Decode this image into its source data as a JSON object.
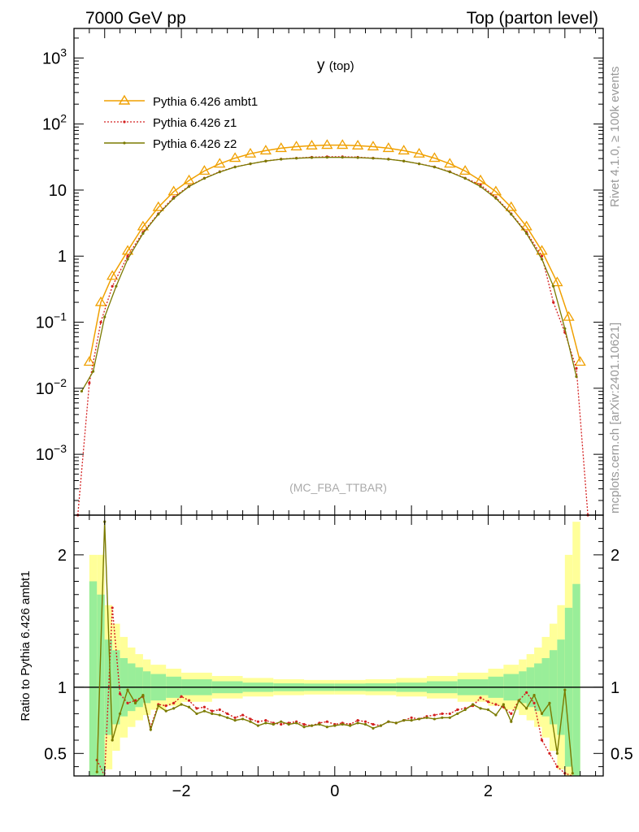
{
  "header": {
    "left": "7000 GeV pp",
    "right": "Top (parton level)"
  },
  "side_labels": {
    "rivet": "Rivet 4.1.0, ≥ 100k events",
    "mcplots": "mcplots.cern.ch [arXiv:2401.10621]"
  },
  "chart_data": [
    {
      "type": "line",
      "title": "y",
      "title_sub": "(top)",
      "watermark": "(MC_FBA_TTBAR)",
      "xlabel": "",
      "ylabel": "",
      "yscale": "log",
      "xlim": [
        -3.4,
        3.5
      ],
      "ylim": [
        0.00012,
        2800
      ],
      "y_ticks": [
        {
          "value": 0.001,
          "base": "10",
          "exp": "−3"
        },
        {
          "value": 0.01,
          "base": "10",
          "exp": "−2"
        },
        {
          "value": 0.1,
          "base": "10",
          "exp": "−1"
        },
        {
          "value": 1,
          "base": "1",
          "exp": ""
        },
        {
          "value": 10,
          "base": "10",
          "exp": ""
        },
        {
          "value": 100,
          "base": "10",
          "exp": "2"
        },
        {
          "value": 1000,
          "base": "10",
          "exp": "3"
        }
      ],
      "legend_position": "top-left",
      "series": [
        {
          "name": "Pythia 6.426 ambt1",
          "color": "#f0a000",
          "style": "solid",
          "marker": "triangle",
          "x": [
            -3.2,
            -3.05,
            -2.9,
            -2.7,
            -2.5,
            -2.3,
            -2.1,
            -1.9,
            -1.7,
            -1.5,
            -1.3,
            -1.1,
            -0.9,
            -0.7,
            -0.5,
            -0.3,
            -0.1,
            0.1,
            0.3,
            0.5,
            0.7,
            0.9,
            1.1,
            1.3,
            1.5,
            1.7,
            1.9,
            2.1,
            2.3,
            2.5,
            2.7,
            2.9,
            3.05,
            3.2
          ],
          "y": [
            0.025,
            0.2,
            0.5,
            1.2,
            2.8,
            5.5,
            9.5,
            14,
            19.5,
            25,
            30.5,
            35.5,
            39.5,
            43,
            45.5,
            47,
            48,
            48,
            47,
            45.5,
            43,
            39.5,
            35.5,
            30.5,
            25,
            19.5,
            14,
            9.5,
            5.5,
            2.8,
            1.2,
            0.4,
            0.12,
            0.025
          ]
        },
        {
          "name": "Pythia 6.426 z1",
          "color": "#d42020",
          "style": "dotted",
          "marker": "dot",
          "x": [
            -3.35,
            -3.2,
            -3.05,
            -2.9,
            -2.7,
            -2.5,
            -2.3,
            -2.1,
            -1.9,
            -1.7,
            -1.5,
            -1.3,
            -1.1,
            -0.9,
            -0.7,
            -0.5,
            -0.3,
            -0.1,
            0.1,
            0.3,
            0.5,
            0.7,
            0.9,
            1.1,
            1.3,
            1.5,
            1.7,
            1.9,
            2.1,
            2.3,
            2.5,
            2.7,
            2.85,
            3.0,
            3.15,
            3.3
          ],
          "y": [
            0.00012,
            0.012,
            0.1,
            0.35,
            1.0,
            2.3,
            4.4,
            7.8,
            11.5,
            15.2,
            19,
            22.5,
            25,
            27.5,
            29.5,
            30.5,
            31.5,
            32,
            32,
            31.5,
            30.5,
            29.5,
            27.5,
            25,
            22.5,
            19,
            15.2,
            12,
            7.8,
            4.4,
            2.3,
            1.0,
            0.2,
            0.07,
            0.02,
            0.00012
          ]
        },
        {
          "name": "Pythia 6.426 z2",
          "color": "#7a7a00",
          "style": "solid",
          "marker": "dot",
          "x": [
            -3.3,
            -3.15,
            -3.0,
            -2.85,
            -2.7,
            -2.5,
            -2.3,
            -2.1,
            -1.9,
            -1.7,
            -1.5,
            -1.3,
            -1.1,
            -0.9,
            -0.7,
            -0.5,
            -0.3,
            -0.1,
            0.1,
            0.3,
            0.5,
            0.7,
            0.9,
            1.1,
            1.3,
            1.5,
            1.7,
            1.9,
            2.1,
            2.3,
            2.5,
            2.7,
            2.85,
            3.0,
            3.15
          ],
          "y": [
            0.009,
            0.018,
            0.12,
            0.35,
            0.9,
            2.2,
            4.3,
            7.5,
            11.3,
            15,
            18.8,
            22.3,
            25,
            27.5,
            29.3,
            30.3,
            31,
            31.3,
            31.3,
            31,
            30.3,
            29.3,
            27.5,
            25,
            22.3,
            18.8,
            15,
            11.3,
            7.5,
            4.3,
            2.2,
            0.9,
            0.35,
            0.08,
            0.015
          ]
        }
      ]
    },
    {
      "type": "line",
      "ylabel": "Ratio to Pythia 6.426 ambt1",
      "xlim": [
        -3.4,
        3.5
      ],
      "ylim": [
        0.33,
        2.3
      ],
      "x_ticks": [
        -2,
        0,
        2
      ],
      "x_tick_labels": [
        "−2",
        "0",
        "2"
      ],
      "y_ticks": [
        0.5,
        1,
        2
      ],
      "y_tick_labels": [
        "0.5",
        "1",
        "2"
      ],
      "reference": 1,
      "bands": {
        "x_edges": [
          -3.2,
          -3.1,
          -3.0,
          -2.9,
          -2.8,
          -2.7,
          -2.6,
          -2.5,
          -2.4,
          -2.2,
          -2.0,
          -1.6,
          -1.2,
          -0.8,
          -0.4,
          0.0,
          0.4,
          0.8,
          1.2,
          1.6,
          2.0,
          2.2,
          2.4,
          2.5,
          2.6,
          2.7,
          2.8,
          2.9,
          3.0,
          3.1,
          3.2
        ],
        "yellow_halfwidth": [
          1.0,
          1.0,
          0.62,
          0.48,
          0.38,
          0.3,
          0.25,
          0.21,
          0.17,
          0.14,
          0.11,
          0.085,
          0.07,
          0.06,
          0.055,
          0.055,
          0.06,
          0.07,
          0.085,
          0.11,
          0.14,
          0.17,
          0.21,
          0.25,
          0.3,
          0.38,
          0.48,
          0.62,
          1.0,
          1.25
        ],
        "green_halfwidth": [
          0.8,
          0.7,
          0.36,
          0.28,
          0.22,
          0.18,
          0.15,
          0.12,
          0.1,
          0.08,
          0.06,
          0.045,
          0.035,
          0.03,
          0.028,
          0.028,
          0.03,
          0.035,
          0.045,
          0.06,
          0.08,
          0.1,
          0.12,
          0.15,
          0.18,
          0.22,
          0.28,
          0.36,
          0.6,
          0.78
        ],
        "yellow_color": "#ffff99",
        "green_color": "#99ee99"
      },
      "series": [
        {
          "name": "Pythia 6.426 z1",
          "color": "#d42020",
          "style": "dotted",
          "x": [
            -3.1,
            -3.0,
            -2.9,
            -2.8,
            -2.7,
            -2.6,
            -2.5,
            -2.4,
            -2.3,
            -2.2,
            -2.1,
            -2.0,
            -1.9,
            -1.8,
            -1.7,
            -1.6,
            -1.5,
            -1.4,
            -1.3,
            -1.2,
            -1.1,
            -1.0,
            -0.9,
            -0.8,
            -0.7,
            -0.6,
            -0.5,
            -0.4,
            -0.3,
            -0.2,
            -0.1,
            0.0,
            0.1,
            0.2,
            0.3,
            0.4,
            0.5,
            0.6,
            0.7,
            0.8,
            0.9,
            1.0,
            1.1,
            1.2,
            1.3,
            1.4,
            1.5,
            1.6,
            1.7,
            1.8,
            1.9,
            2.0,
            2.1,
            2.2,
            2.3,
            2.4,
            2.5,
            2.6,
            2.7,
            2.8,
            2.9,
            3.0,
            3.1
          ],
          "y": [
            0.45,
            0.3,
            1.6,
            0.95,
            0.88,
            0.9,
            0.93,
            0.7,
            0.87,
            0.86,
            0.88,
            0.93,
            0.9,
            0.84,
            0.85,
            0.82,
            0.83,
            0.8,
            0.77,
            0.79,
            0.76,
            0.74,
            0.75,
            0.73,
            0.72,
            0.73,
            0.74,
            0.72,
            0.71,
            0.73,
            0.74,
            0.72,
            0.73,
            0.72,
            0.75,
            0.74,
            0.72,
            0.71,
            0.74,
            0.73,
            0.75,
            0.77,
            0.76,
            0.78,
            0.79,
            0.8,
            0.8,
            0.83,
            0.84,
            0.86,
            0.92,
            0.89,
            0.87,
            0.85,
            0.8,
            0.9,
            0.96,
            0.88,
            0.6,
            0.5,
            0.4,
            0.35,
            0.3
          ]
        },
        {
          "name": "Pythia 6.426 z2",
          "color": "#7a7a00",
          "style": "solid",
          "x": [
            -3.1,
            -3.0,
            -2.9,
            -2.8,
            -2.7,
            -2.6,
            -2.5,
            -2.4,
            -2.3,
            -2.2,
            -2.1,
            -2.0,
            -1.9,
            -1.8,
            -1.7,
            -1.6,
            -1.5,
            -1.4,
            -1.3,
            -1.2,
            -1.1,
            -1.0,
            -0.9,
            -0.8,
            -0.7,
            -0.6,
            -0.5,
            -0.4,
            -0.3,
            -0.2,
            -0.1,
            0.0,
            0.1,
            0.2,
            0.3,
            0.4,
            0.5,
            0.6,
            0.7,
            0.8,
            0.9,
            1.0,
            1.1,
            1.2,
            1.3,
            1.4,
            1.5,
            1.6,
            1.7,
            1.8,
            1.9,
            2.0,
            2.1,
            2.2,
            2.3,
            2.4,
            2.5,
            2.6,
            2.7,
            2.8,
            2.9,
            3.0,
            3.1
          ],
          "y": [
            0.36,
            2.25,
            0.6,
            0.8,
            0.98,
            0.88,
            0.94,
            0.68,
            0.86,
            0.82,
            0.84,
            0.87,
            0.85,
            0.8,
            0.82,
            0.8,
            0.79,
            0.77,
            0.75,
            0.76,
            0.74,
            0.71,
            0.73,
            0.72,
            0.74,
            0.72,
            0.73,
            0.7,
            0.71,
            0.72,
            0.7,
            0.71,
            0.72,
            0.71,
            0.73,
            0.72,
            0.69,
            0.71,
            0.74,
            0.73,
            0.75,
            0.75,
            0.76,
            0.77,
            0.76,
            0.77,
            0.77,
            0.8,
            0.83,
            0.87,
            0.84,
            0.83,
            0.79,
            0.87,
            0.74,
            0.9,
            0.84,
            0.94,
            0.8,
            0.88,
            0.5,
            0.98,
            0.35
          ]
        }
      ]
    }
  ]
}
